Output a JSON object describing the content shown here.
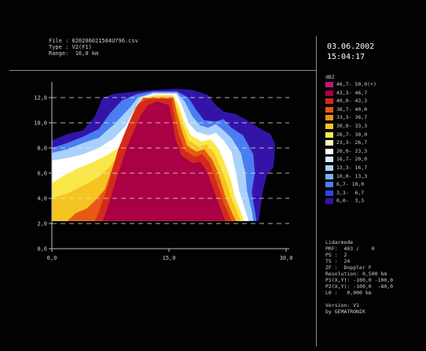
{
  "header": {
    "file": "File : 020206021504U796.csv",
    "type": "Type : V2(F1)",
    "range": "Range:  16,0 km"
  },
  "datetime": {
    "date": "03.06.2002",
    "time": "15:04:17"
  },
  "legend": {
    "unit": "dBZ",
    "items": [
      {
        "label": "46,7- 50,0(+)",
        "color": "#c0157a"
      },
      {
        "label": "43,3- 46,7",
        "color": "#aa0044"
      },
      {
        "label": "40,0- 43,3",
        "color": "#d42a1c"
      },
      {
        "label": "36,7- 40,0",
        "color": "#e65a14"
      },
      {
        "label": "33,3- 36,7",
        "color": "#f0901c"
      },
      {
        "label": "30,0- 33,3",
        "color": "#f6c420"
      },
      {
        "label": "26,7- 30,0",
        "color": "#fae84a"
      },
      {
        "label": "23,3- 26,7",
        "color": "#fbf7b8"
      },
      {
        "label": "20,0- 23,3",
        "color": "#ffffff"
      },
      {
        "label": "16,7- 20,0",
        "color": "#d8ecfc"
      },
      {
        "label": "13,3- 16,7",
        "color": "#a8d2fa"
      },
      {
        "label": "10,0- 13,3",
        "color": "#78b0f6"
      },
      {
        "label": "6,7- 10,0",
        "color": "#4a7ef0"
      },
      {
        "label": "3,3-  6,7",
        "color": "#3046d6"
      },
      {
        "label": "0,0-  3,3",
        "color": "#3414a8"
      }
    ]
  },
  "info_lines": [
    "Lidarmode",
    "PRF:  403 /    0",
    "PS :  2",
    "TS :  24",
    "ZF :  Doppler F",
    "Resolution: 0,500 km",
    "P1(X,Y): -100,0 -100,0",
    "P2(X,Y): -100,0  -80,0",
    "L0 :   0,000 km",
    "",
    "Version: V1",
    "by GEMATRONIK"
  ],
  "chart_data": {
    "type": "heatmap",
    "x_ticks": [
      "0,0",
      "15,0",
      "30,0"
    ],
    "y_ticks": [
      "0,0",
      "2,0",
      "4,0",
      "6,0",
      "8,0",
      "10,0",
      "12,0"
    ],
    "xlim": [
      0,
      30
    ],
    "ylim": [
      0,
      13
    ],
    "grid": "dashed horizontal",
    "color_scale_unit": "dBZ",
    "levels": [
      {
        "dbz_min": 0.0,
        "color": "#3414a8"
      },
      {
        "dbz_min": 6.7,
        "color": "#4a7ef0"
      },
      {
        "dbz_min": 13.3,
        "color": "#a8d2fa"
      },
      {
        "dbz_min": 20.0,
        "color": "#ffffff"
      },
      {
        "dbz_min": 26.7,
        "color": "#fae84a"
      },
      {
        "dbz_min": 30.0,
        "color": "#f6c420"
      },
      {
        "dbz_min": 36.7,
        "color": "#e65a14"
      },
      {
        "dbz_min": 40.0,
        "color": "#d42a1c"
      },
      {
        "dbz_min": 43.3,
        "color": "#aa0044"
      }
    ],
    "regions": [
      {
        "level": 0,
        "points": [
          [
            0,
            2.2
          ],
          [
            0,
            8.6
          ],
          [
            2,
            9.1
          ],
          [
            4,
            9.4
          ],
          [
            5.5,
            10.5
          ],
          [
            6.5,
            12
          ],
          [
            8,
            12.3
          ],
          [
            11,
            12.5
          ],
          [
            13,
            12.6
          ],
          [
            16,
            12.7
          ],
          [
            18,
            12.6
          ],
          [
            20,
            12.2
          ],
          [
            21,
            11.4
          ],
          [
            22,
            10.9
          ],
          [
            23.5,
            10.7
          ],
          [
            25,
            10.2
          ],
          [
            26.5,
            9.6
          ],
          [
            28,
            9.1
          ],
          [
            28.6,
            8.3
          ],
          [
            28.4,
            6.5
          ],
          [
            27.5,
            5.8
          ],
          [
            27,
            4.5
          ],
          [
            26.5,
            2.2
          ]
        ]
      },
      {
        "level": 1,
        "points": [
          [
            0,
            2.2
          ],
          [
            0,
            8.0
          ],
          [
            2,
            8.4
          ],
          [
            4,
            8.9
          ],
          [
            6,
            9.5
          ],
          [
            7.5,
            10.8
          ],
          [
            9,
            11.8
          ],
          [
            11,
            12.3
          ],
          [
            13,
            12.5
          ],
          [
            16,
            12.5
          ],
          [
            17.5,
            12.0
          ],
          [
            18.5,
            11.0
          ],
          [
            19.5,
            10.2
          ],
          [
            21,
            10.1
          ],
          [
            22,
            10.3
          ],
          [
            23,
            9.6
          ],
          [
            24.5,
            9.0
          ],
          [
            25.8,
            7.5
          ],
          [
            26,
            6.0
          ],
          [
            25.6,
            4.5
          ],
          [
            26,
            3.0
          ],
          [
            26.2,
            2.2
          ]
        ]
      },
      {
        "level": 2,
        "points": [
          [
            0,
            2.2
          ],
          [
            0,
            7.6
          ],
          [
            2,
            7.9
          ],
          [
            4,
            8.4
          ],
          [
            6,
            8.8
          ],
          [
            8,
            9.9
          ],
          [
            10,
            11.2
          ],
          [
            11,
            12.0
          ],
          [
            13,
            12.4
          ],
          [
            16,
            12.4
          ],
          [
            17,
            11.7
          ],
          [
            18,
            10.5
          ],
          [
            19,
            9.8
          ],
          [
            20,
            9.6
          ],
          [
            21,
            9.9
          ],
          [
            22,
            9.4
          ],
          [
            23,
            8.8
          ],
          [
            24.2,
            7.6
          ],
          [
            24.8,
            6.0
          ],
          [
            25,
            4.6
          ],
          [
            25.6,
            3.0
          ],
          [
            25.8,
            2.2
          ]
        ]
      },
      {
        "level": 3,
        "points": [
          [
            0,
            2.2
          ],
          [
            0,
            7.0
          ],
          [
            2,
            7.2
          ],
          [
            4,
            7.5
          ],
          [
            6,
            8.0
          ],
          [
            8,
            8.8
          ],
          [
            9.5,
            9.8
          ],
          [
            10.5,
            11.0
          ],
          [
            11.5,
            12.0
          ],
          [
            13,
            12.3
          ],
          [
            16,
            12.3
          ],
          [
            16.6,
            11.5
          ],
          [
            17.5,
            10.0
          ],
          [
            18.5,
            9.3
          ],
          [
            20,
            9.0
          ],
          [
            21,
            9.2
          ],
          [
            22,
            8.6
          ],
          [
            23,
            7.7
          ],
          [
            23.6,
            6.0
          ],
          [
            24,
            4.6
          ],
          [
            24.8,
            3.0
          ],
          [
            25.2,
            2.2
          ]
        ]
      },
      {
        "level": 4,
        "points": [
          [
            0,
            2.2
          ],
          [
            0,
            5.2
          ],
          [
            1.5,
            5.8
          ],
          [
            3,
            6.3
          ],
          [
            5,
            6.8
          ],
          [
            7,
            7.4
          ],
          [
            8.6,
            8.0
          ],
          [
            9.6,
            9.1
          ],
          [
            10.4,
            10.6
          ],
          [
            11.2,
            11.6
          ],
          [
            12.4,
            12.1
          ],
          [
            13.5,
            12.2
          ],
          [
            15.5,
            12.2
          ],
          [
            16.3,
            11.3
          ],
          [
            17,
            10.0
          ],
          [
            17.8,
            9.0
          ],
          [
            19.2,
            8.5
          ],
          [
            20.3,
            8.7
          ],
          [
            21.3,
            8.0
          ],
          [
            22.1,
            6.9
          ],
          [
            22.9,
            5.5
          ],
          [
            23.5,
            4.0
          ],
          [
            24.3,
            2.8
          ],
          [
            24.6,
            2.2
          ]
        ]
      },
      {
        "level": 5,
        "points": [
          [
            0,
            2.2
          ],
          [
            0,
            4.0
          ],
          [
            2,
            4.4
          ],
          [
            4,
            5.0
          ],
          [
            6,
            5.7
          ],
          [
            7.4,
            6.5
          ],
          [
            8.4,
            7.4
          ],
          [
            9.2,
            8.6
          ],
          [
            10.2,
            10.0
          ],
          [
            11,
            11.2
          ],
          [
            12,
            12.0
          ],
          [
            13.5,
            12.1
          ],
          [
            15.5,
            12.1
          ],
          [
            16.1,
            11.0
          ],
          [
            16.8,
            9.8
          ],
          [
            17.5,
            8.6
          ],
          [
            18.8,
            8.1
          ],
          [
            19.8,
            8.3
          ],
          [
            20.8,
            7.6
          ],
          [
            21.6,
            6.5
          ],
          [
            22.4,
            5.2
          ],
          [
            23,
            4.0
          ],
          [
            23.8,
            2.8
          ],
          [
            24.2,
            2.2
          ]
        ]
      },
      {
        "level": 6,
        "points": [
          [
            2,
            2.2
          ],
          [
            3,
            2.8
          ],
          [
            4.5,
            3.2
          ],
          [
            5.5,
            3.8
          ],
          [
            6.8,
            4.7
          ],
          [
            7.4,
            5.8
          ],
          [
            8.1,
            7.0
          ],
          [
            8.9,
            8.4
          ],
          [
            9.8,
            9.9
          ],
          [
            10.7,
            11.2
          ],
          [
            11.7,
            12.0
          ],
          [
            13.5,
            12.0
          ],
          [
            15.6,
            12.0
          ],
          [
            16,
            10.8
          ],
          [
            16.6,
            9.5
          ],
          [
            17.3,
            8.2
          ],
          [
            18.5,
            7.7
          ],
          [
            19.5,
            7.9
          ],
          [
            20.5,
            7.1
          ],
          [
            21.3,
            6.0
          ],
          [
            21.8,
            5.0
          ],
          [
            22.3,
            4.0
          ],
          [
            23.1,
            2.8
          ],
          [
            23.6,
            2.2
          ]
        ]
      },
      {
        "level": 7,
        "points": [
          [
            5.5,
            2.2
          ],
          [
            6,
            2.9
          ],
          [
            6.5,
            3.8
          ],
          [
            7.2,
            5.0
          ],
          [
            7.8,
            6.4
          ],
          [
            8.5,
            7.9
          ],
          [
            9.4,
            9.3
          ],
          [
            10.3,
            10.5
          ],
          [
            11.1,
            11.5
          ],
          [
            12.2,
            11.9
          ],
          [
            13.8,
            11.9
          ],
          [
            15.3,
            11.9
          ],
          [
            15.7,
            10.5
          ],
          [
            16.3,
            9.0
          ],
          [
            17,
            7.8
          ],
          [
            18.3,
            7.3
          ],
          [
            19.3,
            7.5
          ],
          [
            20.2,
            6.8
          ],
          [
            20.8,
            5.8
          ],
          [
            21.4,
            4.8
          ],
          [
            21.9,
            3.8
          ],
          [
            22.6,
            2.8
          ],
          [
            23,
            2.2
          ]
        ]
      },
      {
        "level": 8,
        "points": [
          [
            6.5,
            2.2
          ],
          [
            7,
            3.0
          ],
          [
            7.6,
            4.2
          ],
          [
            8.3,
            5.6
          ],
          [
            9,
            6.9
          ],
          [
            9.7,
            8.2
          ],
          [
            10.6,
            9.5
          ],
          [
            11.4,
            10.6
          ],
          [
            12.3,
            11.4
          ],
          [
            13.5,
            11.7
          ],
          [
            15,
            11.4
          ],
          [
            15.4,
            10.2
          ],
          [
            15.9,
            8.6
          ],
          [
            16.6,
            7.4
          ],
          [
            18,
            6.8
          ],
          [
            19,
            6.9
          ],
          [
            19.8,
            6.2
          ],
          [
            20.4,
            5.2
          ],
          [
            21,
            4.2
          ],
          [
            21.6,
            3.2
          ],
          [
            22.2,
            2.2
          ]
        ]
      }
    ]
  }
}
